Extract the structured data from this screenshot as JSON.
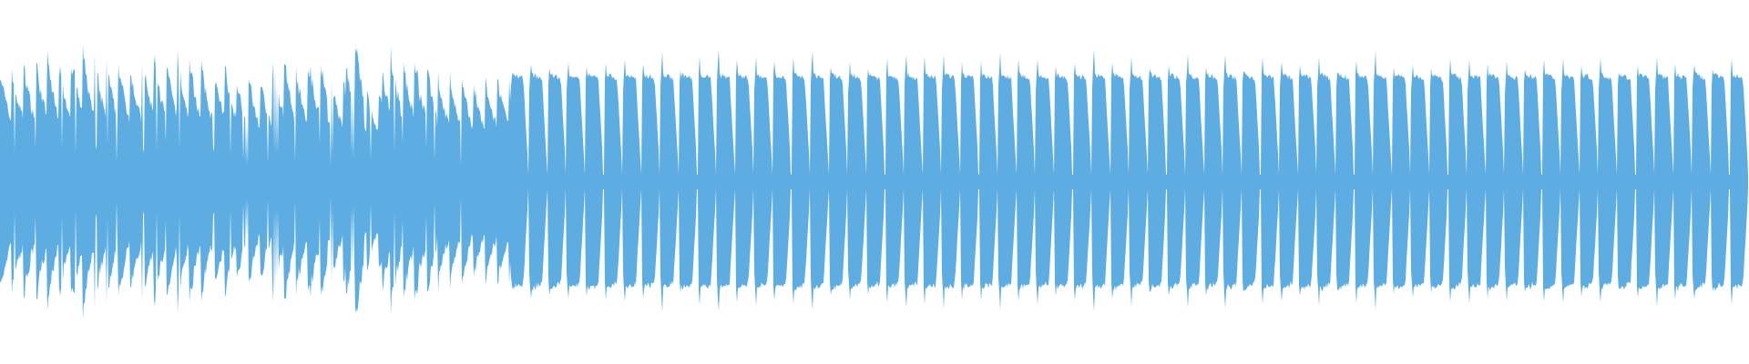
{
  "chart_data": {
    "type": "area",
    "title": "",
    "xlabel": "",
    "ylabel": "",
    "ylim": [
      -1,
      1
    ],
    "grid": false,
    "legend": "none",
    "color": "#5dade2",
    "background": "#ffffff",
    "series": [
      {
        "peak_envelope": [
          0.78,
          0.82,
          0.86,
          0.84,
          0.9,
          0.85,
          0.82,
          0.8,
          0.88,
          0.86,
          0.84,
          0.8,
          0.82,
          0.72,
          0.7,
          0.86,
          0.76,
          0.88,
          0.7,
          0.96,
          0.62,
          0.9,
          0.86,
          0.84,
          0.72,
          0.7,
          0.68,
          0.72,
          0.76,
          0.8,
          0.82,
          0.84,
          0.86,
          0.84,
          0.82,
          0.86,
          0.88,
          0.84,
          0.86,
          0.9,
          0.88,
          0.84,
          0.9,
          0.86,
          0.88,
          0.84,
          0.82,
          0.86,
          0.88,
          0.86,
          0.9,
          0.86,
          0.88,
          0.84,
          0.86,
          0.88,
          0.84,
          0.86,
          0.86,
          0.84,
          0.88,
          0.86,
          0.84,
          0.86,
          0.82,
          0.86,
          0.84,
          0.86,
          0.84,
          0.86,
          0.82,
          0.84,
          0.86,
          0.82,
          0.84,
          0.86,
          0.84,
          0.82,
          0.84,
          0.86,
          0.82,
          0.84,
          0.82,
          0.84,
          0.86,
          0.82,
          0.84,
          0.86,
          0.82,
          0.84,
          0.82,
          0.86,
          0.84,
          0.82,
          0.84,
          0.88
        ]
      }
    ]
  }
}
